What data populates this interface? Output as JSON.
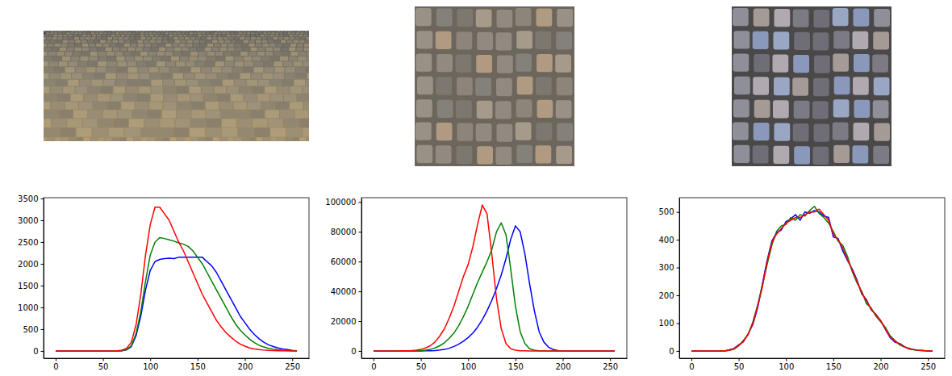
{
  "chart_data": [
    {
      "type": "line",
      "x": [
        0,
        5,
        10,
        15,
        20,
        25,
        30,
        35,
        40,
        45,
        50,
        55,
        60,
        65,
        70,
        75,
        80,
        85,
        90,
        95,
        100,
        105,
        110,
        115,
        120,
        125,
        130,
        135,
        140,
        145,
        150,
        155,
        160,
        165,
        170,
        175,
        180,
        185,
        190,
        195,
        200,
        205,
        210,
        215,
        220,
        225,
        230,
        235,
        240,
        245,
        250,
        255
      ],
      "xlim": [
        -12.75,
        267.75
      ],
      "xticks": [
        0,
        50,
        100,
        150,
        200,
        250
      ],
      "ylim": [
        -167.5,
        3517.5
      ],
      "yticks": [
        0,
        500,
        1000,
        1500,
        2000,
        2500,
        3000,
        3500
      ],
      "series": [
        {
          "color": "#0000ff",
          "values": [
            0,
            0,
            0,
            0,
            0,
            0,
            0,
            0,
            0,
            0,
            0,
            0,
            0,
            0,
            5,
            25,
            100,
            350,
            800,
            1400,
            1850,
            2050,
            2100,
            2120,
            2130,
            2120,
            2150,
            2150,
            2150,
            2150,
            2150,
            2150,
            2050,
            1950,
            1800,
            1600,
            1400,
            1200,
            1000,
            800,
            650,
            500,
            380,
            280,
            200,
            140,
            100,
            70,
            45,
            30,
            15,
            5
          ]
        },
        {
          "color": "#008000",
          "values": [
            0,
            0,
            0,
            0,
            0,
            0,
            0,
            0,
            0,
            0,
            0,
            0,
            0,
            0,
            5,
            30,
            120,
            400,
            900,
            1600,
            2200,
            2500,
            2600,
            2580,
            2550,
            2520,
            2480,
            2450,
            2400,
            2300,
            2150,
            2000,
            1800,
            1600,
            1400,
            1200,
            1000,
            800,
            620,
            480,
            370,
            270,
            190,
            130,
            90,
            60,
            40,
            25,
            15,
            10,
            5,
            2
          ]
        },
        {
          "color": "#ff0000",
          "values": [
            0,
            0,
            0,
            0,
            0,
            0,
            0,
            0,
            0,
            0,
            0,
            0,
            0,
            5,
            20,
            60,
            200,
            600,
            1300,
            2200,
            2900,
            3300,
            3300,
            3150,
            3000,
            2750,
            2500,
            2300,
            2050,
            1800,
            1550,
            1300,
            1100,
            900,
            700,
            550,
            420,
            320,
            230,
            160,
            110,
            70,
            45,
            30,
            20,
            12,
            8,
            5,
            3,
            2,
            1,
            0
          ]
        }
      ]
    },
    {
      "type": "line",
      "x": [
        0,
        5,
        10,
        15,
        20,
        25,
        30,
        35,
        40,
        45,
        50,
        55,
        60,
        65,
        70,
        75,
        80,
        85,
        90,
        95,
        100,
        105,
        110,
        115,
        120,
        125,
        130,
        135,
        140,
        145,
        150,
        155,
        160,
        165,
        170,
        175,
        180,
        185,
        190,
        195,
        200,
        205,
        210,
        215,
        220,
        225,
        230,
        235,
        240,
        245,
        250,
        255
      ],
      "xlim": [
        -12.75,
        267.75
      ],
      "xticks": [
        0,
        50,
        100,
        150,
        200,
        250
      ],
      "ylim": [
        -4900,
        102900
      ],
      "yticks": [
        0,
        20000,
        40000,
        60000,
        80000,
        100000
      ],
      "series": [
        {
          "color": "#0000ff",
          "values": [
            0,
            0,
            0,
            0,
            0,
            0,
            0,
            0,
            0,
            0,
            20,
            50,
            100,
            300,
            600,
            1000,
            1800,
            3000,
            4500,
            6500,
            9000,
            12000,
            16000,
            21000,
            27000,
            34000,
            42000,
            51000,
            62000,
            75000,
            84000,
            80000,
            65000,
            45000,
            27000,
            13000,
            6000,
            2500,
            900,
            300,
            100,
            30,
            10,
            0,
            0,
            0,
            0,
            0,
            0,
            0,
            0,
            0
          ]
        },
        {
          "color": "#008000",
          "values": [
            0,
            0,
            0,
            0,
            0,
            0,
            0,
            0,
            30,
            80,
            200,
            500,
            1000,
            2000,
            3500,
            5500,
            8500,
            12000,
            17000,
            23000,
            30000,
            38000,
            46000,
            53000,
            60000,
            68000,
            80000,
            86000,
            78000,
            55000,
            30000,
            13000,
            5000,
            1500,
            500,
            150,
            50,
            10,
            0,
            0,
            0,
            0,
            0,
            0,
            0,
            0,
            0,
            0,
            0,
            0,
            0,
            0
          ]
        },
        {
          "color": "#ff0000",
          "values": [
            0,
            0,
            0,
            0,
            0,
            20,
            50,
            100,
            200,
            500,
            1000,
            2000,
            3500,
            6000,
            10000,
            15000,
            22000,
            30000,
            40000,
            50000,
            58000,
            70000,
            85000,
            98000,
            92000,
            65000,
            35000,
            15000,
            5000,
            1500,
            500,
            150,
            50,
            10,
            0,
            0,
            0,
            0,
            0,
            0,
            0,
            0,
            0,
            0,
            0,
            0,
            0,
            0,
            0,
            0,
            0,
            0
          ]
        }
      ]
    },
    {
      "type": "line",
      "x": [
        0,
        5,
        10,
        15,
        20,
        25,
        30,
        35,
        40,
        45,
        50,
        55,
        60,
        65,
        70,
        75,
        80,
        85,
        90,
        95,
        100,
        105,
        110,
        115,
        120,
        125,
        130,
        135,
        140,
        145,
        150,
        155,
        160,
        165,
        170,
        175,
        180,
        185,
        190,
        195,
        200,
        205,
        210,
        215,
        220,
        225,
        230,
        235,
        240,
        245,
        250,
        255
      ],
      "xlim": [
        -12.75,
        267.75
      ],
      "xticks": [
        0,
        50,
        100,
        150,
        200,
        250
      ],
      "ylim": [
        -26.25,
        551.25
      ],
      "yticks": [
        0,
        100,
        200,
        300,
        400,
        500
      ],
      "series": [
        {
          "color": "#0000ff",
          "values": [
            0,
            0,
            0,
            0,
            0,
            0,
            0,
            0,
            4,
            9,
            22,
            33,
            62,
            95,
            155,
            240,
            325,
            395,
            425,
            435,
            465,
            475,
            490,
            470,
            500,
            495,
            505,
            500,
            485,
            480,
            410,
            405,
            360,
            325,
            295,
            255,
            205,
            185,
            148,
            132,
            108,
            78,
            48,
            32,
            27,
            16,
            7,
            5,
            2,
            1,
            0,
            0
          ]
        },
        {
          "color": "#008000",
          "values": [
            0,
            0,
            0,
            0,
            0,
            0,
            0,
            0,
            2,
            6,
            18,
            38,
            58,
            105,
            165,
            235,
            310,
            380,
            430,
            450,
            455,
            480,
            470,
            490,
            485,
            505,
            520,
            495,
            480,
            460,
            430,
            395,
            380,
            340,
            285,
            245,
            215,
            170,
            155,
            125,
            105,
            85,
            55,
            38,
            22,
            14,
            10,
            4,
            2,
            1,
            0,
            0
          ]
        },
        {
          "color": "#ff0000",
          "values": [
            0,
            0,
            0,
            0,
            0,
            0,
            0,
            0,
            3,
            8,
            20,
            35,
            60,
            100,
            160,
            230,
            320,
            390,
            420,
            440,
            460,
            470,
            480,
            480,
            490,
            500,
            500,
            510,
            490,
            470,
            420,
            400,
            370,
            330,
            290,
            250,
            210,
            180,
            150,
            130,
            110,
            80,
            50,
            35,
            25,
            15,
            8,
            5,
            3,
            1,
            0,
            0
          ]
        }
      ]
    }
  ]
}
